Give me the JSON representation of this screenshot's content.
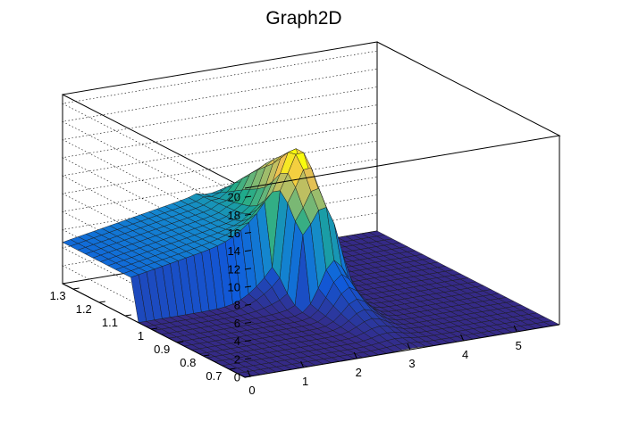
{
  "chart_data": {
    "type": "surface",
    "title": "Graph2D",
    "x_ticks": [
      "0",
      "1",
      "2",
      "3",
      "4",
      "5"
    ],
    "y_ticks": [
      "0.7",
      "0.8",
      "0.9",
      "1",
      "1.1",
      "1.2",
      "1.3"
    ],
    "z_ticks": [
      "0",
      "2",
      "4",
      "6",
      "8",
      "10",
      "12",
      "14",
      "16",
      "18",
      "20"
    ],
    "xlim": [
      -0.1,
      5.8
    ],
    "ylim": [
      0.64,
      1.34
    ],
    "zlim": [
      0,
      21
    ],
    "grid": true,
    "palette": "kBird",
    "surface_points": [
      {
        "x": 0.0,
        "y": 1.3,
        "z": 4.7
      },
      {
        "x": 0.0,
        "y": 0.7,
        "z": 0.0
      },
      {
        "x": 1.0,
        "y": 1.3,
        "z": 5.9
      },
      {
        "x": 2.0,
        "y": 1.3,
        "z": 7.0
      },
      {
        "x": 2.5,
        "y": 1.3,
        "z": 8.0
      },
      {
        "x": 2.9,
        "y": 1.2,
        "z": 13.5
      },
      {
        "x": 3.0,
        "y": 1.1,
        "z": 15.0
      },
      {
        "x": 3.1,
        "y": 1.0,
        "z": 14.0
      },
      {
        "x": 4.0,
        "y": 0.9,
        "z": 0.05
      },
      {
        "x": 5.5,
        "y": 0.7,
        "z": 0.0
      }
    ],
    "colors": {
      "frame": "#000000",
      "mesh_line": "#1a1a1a",
      "palette_low": "#352a87",
      "palette_mid": "#1fab89",
      "palette_high": "#f9fb0e"
    }
  }
}
